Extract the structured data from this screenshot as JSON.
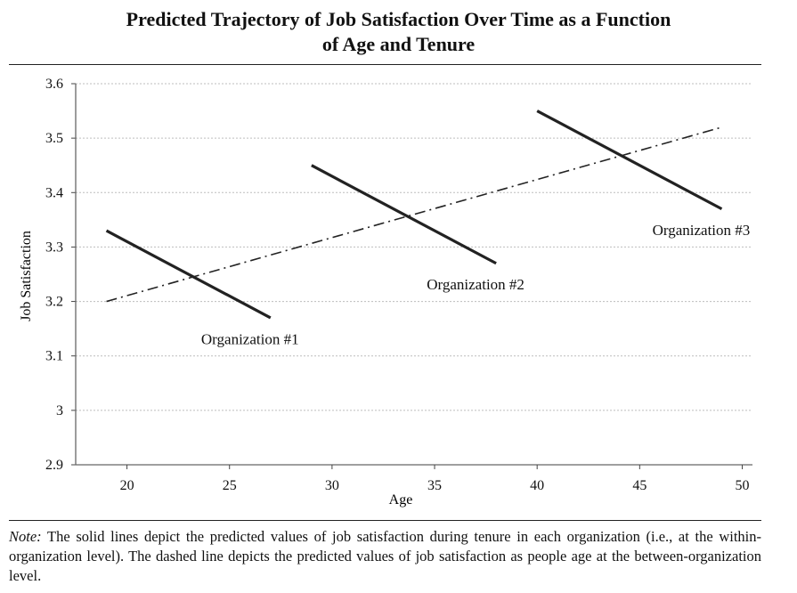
{
  "title_line1": "Predicted Trajectory of Job Satisfaction Over Time as a Function",
  "title_line2": "of Age and Tenure",
  "note_label": "Note:",
  "note_text": " The solid lines depict the predicted values of job satisfaction during tenure in each organization (i.e., at the within-organization level). The dashed line depicts the predicted values of job satisfaction as people age at the between-organization level.",
  "chart_data": {
    "type": "line",
    "xlabel": "Age",
    "ylabel": "Job Satisfaction",
    "xlim": [
      17.5,
      50.5
    ],
    "ylim": [
      2.9,
      3.6
    ],
    "x_ticks": [
      20,
      25,
      30,
      35,
      40,
      45,
      50
    ],
    "x_tick_labels": [
      "20",
      "25",
      "30",
      "35",
      "40",
      "45",
      "50"
    ],
    "y_ticks": [
      2.9,
      3.0,
      3.1,
      3.2,
      3.3,
      3.4,
      3.5,
      3.6
    ],
    "y_tick_labels": [
      "2.9",
      "3",
      "3.1",
      "3.2",
      "3.3",
      "3.4",
      "3.5",
      "3.6"
    ],
    "grid": "horizontal dashed",
    "series": [
      {
        "style": "solid",
        "color": "#222222",
        "x": [
          19,
          27
        ],
        "y": [
          3.33,
          3.17
        ]
      },
      {
        "style": "solid",
        "color": "#222222",
        "x": [
          29,
          38
        ],
        "y": [
          3.45,
          3.27
        ]
      },
      {
        "style": "solid",
        "color": "#222222",
        "x": [
          40,
          49
        ],
        "y": [
          3.55,
          3.37
        ]
      },
      {
        "style": "dash-dot",
        "color": "#222222",
        "x": [
          19,
          49
        ],
        "y": [
          3.2,
          3.52
        ]
      }
    ],
    "annotations": [
      {
        "text": "Organization #1",
        "x": 26,
        "y": 3.13
      },
      {
        "text": "Organization #2",
        "x": 37,
        "y": 3.23
      },
      {
        "text": "Organization #3",
        "x": 48,
        "y": 3.33
      }
    ]
  }
}
